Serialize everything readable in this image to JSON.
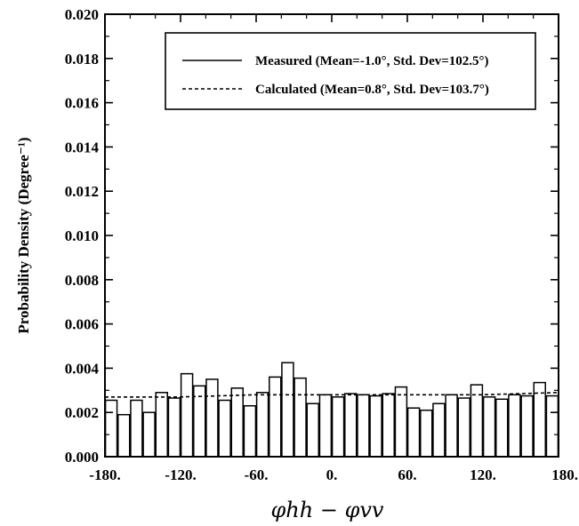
{
  "chart_data": {
    "type": "bar",
    "title": "",
    "xlabel": "φhh − φvv",
    "ylabel": "Probability Density (Degree⁻¹)",
    "xlim": [
      -180,
      180
    ],
    "ylim": [
      0.0,
      0.02
    ],
    "xticks": [
      -180,
      -120,
      -60,
      0,
      60,
      120,
      180
    ],
    "xtick_labels": [
      "-180.",
      "-120.",
      "-60.",
      "0.",
      "60.",
      "120.",
      "180."
    ],
    "yticks": [
      0.0,
      0.002,
      0.004,
      0.006,
      0.008,
      0.01,
      0.012,
      0.014,
      0.016,
      0.018,
      0.02
    ],
    "ytick_labels": [
      "0.000",
      "0.002",
      "0.004",
      "0.006",
      "0.008",
      "0.010",
      "0.012",
      "0.014",
      "0.016",
      "0.018",
      "0.020"
    ],
    "bin_width": 10,
    "bin_centers": [
      -175,
      -165,
      -155,
      -145,
      -135,
      -125,
      -115,
      -105,
      -95,
      -85,
      -75,
      -65,
      -55,
      -45,
      -35,
      -25,
      -15,
      -5,
      5,
      15,
      25,
      35,
      45,
      55,
      65,
      75,
      85,
      95,
      105,
      115,
      125,
      135,
      145,
      155,
      165,
      175
    ],
    "series": [
      {
        "name": "Measured (Mean=-1.0°, Std. Dev=102.5°)",
        "kind": "histogram",
        "values": [
          0.00255,
          0.0019,
          0.00255,
          0.002,
          0.0029,
          0.00265,
          0.00375,
          0.0032,
          0.0035,
          0.00255,
          0.0031,
          0.0023,
          0.0029,
          0.0036,
          0.00425,
          0.00355,
          0.0024,
          0.0028,
          0.0027,
          0.00285,
          0.0028,
          0.00275,
          0.00285,
          0.00315,
          0.0022,
          0.0021,
          0.0024,
          0.0028,
          0.00265,
          0.00325,
          0.0027,
          0.0026,
          0.0028,
          0.00275,
          0.00335,
          0.00275
        ]
      },
      {
        "name": "Calculated (Mean=0.8°, Std. Dev=103.7°)",
        "kind": "line",
        "style": "dashed",
        "x": [
          -180,
          -120,
          -60,
          0,
          60,
          120,
          180
        ],
        "y": [
          0.0027,
          0.0027,
          0.0028,
          0.0028,
          0.0028,
          0.0028,
          0.0029
        ]
      }
    ],
    "legend_position": "top-right",
    "grid": false
  },
  "colors": {
    "background": "#ffffff",
    "axes": "#000000",
    "bars_fill": "#ffffff",
    "bars_stroke": "#000000"
  }
}
